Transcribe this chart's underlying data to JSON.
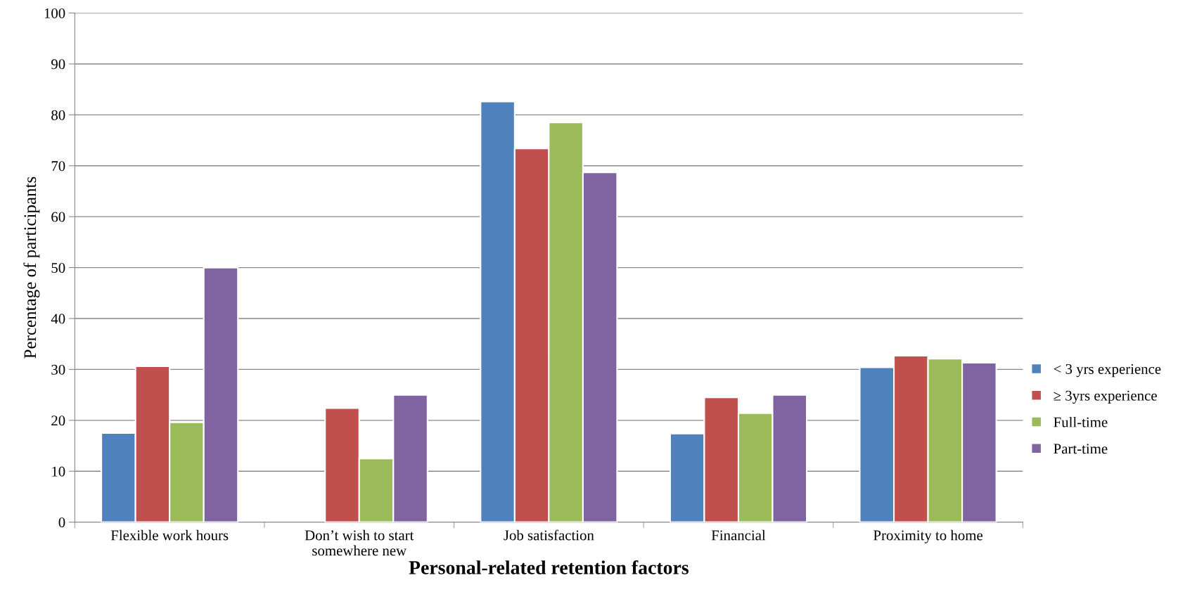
{
  "chart_data": {
    "type": "bar",
    "xlabel": "Personal-related retention factors",
    "ylabel": "Percentage of participants",
    "categories": [
      "Flexible work hours",
      "Don’t wish to start somewhere new",
      "Job satisfaction",
      "Financial",
      "Proximity to home"
    ],
    "series": [
      {
        "name": "< 3 yrs experience",
        "color": "#4f81bd",
        "values": [
          17.5,
          null,
          82.6,
          17.4,
          30.4
        ]
      },
      {
        "name": "≥ 3yrs experience",
        "color": "#c0504d",
        "values": [
          30.6,
          22.4,
          73.4,
          24.5,
          32.7
        ]
      },
      {
        "name": "Full-time",
        "color": "#9bbb59",
        "values": [
          19.6,
          12.5,
          78.5,
          21.4,
          32.1
        ]
      },
      {
        "name": "Part-time",
        "color": "#8064a2",
        "values": [
          50,
          25,
          68.7,
          25,
          31.3
        ]
      }
    ],
    "ylim": [
      0,
      100
    ],
    "yticks": [
      0,
      10,
      20,
      30,
      40,
      50,
      60,
      70,
      80,
      90,
      100
    ],
    "grid": "y",
    "legend": "right"
  }
}
